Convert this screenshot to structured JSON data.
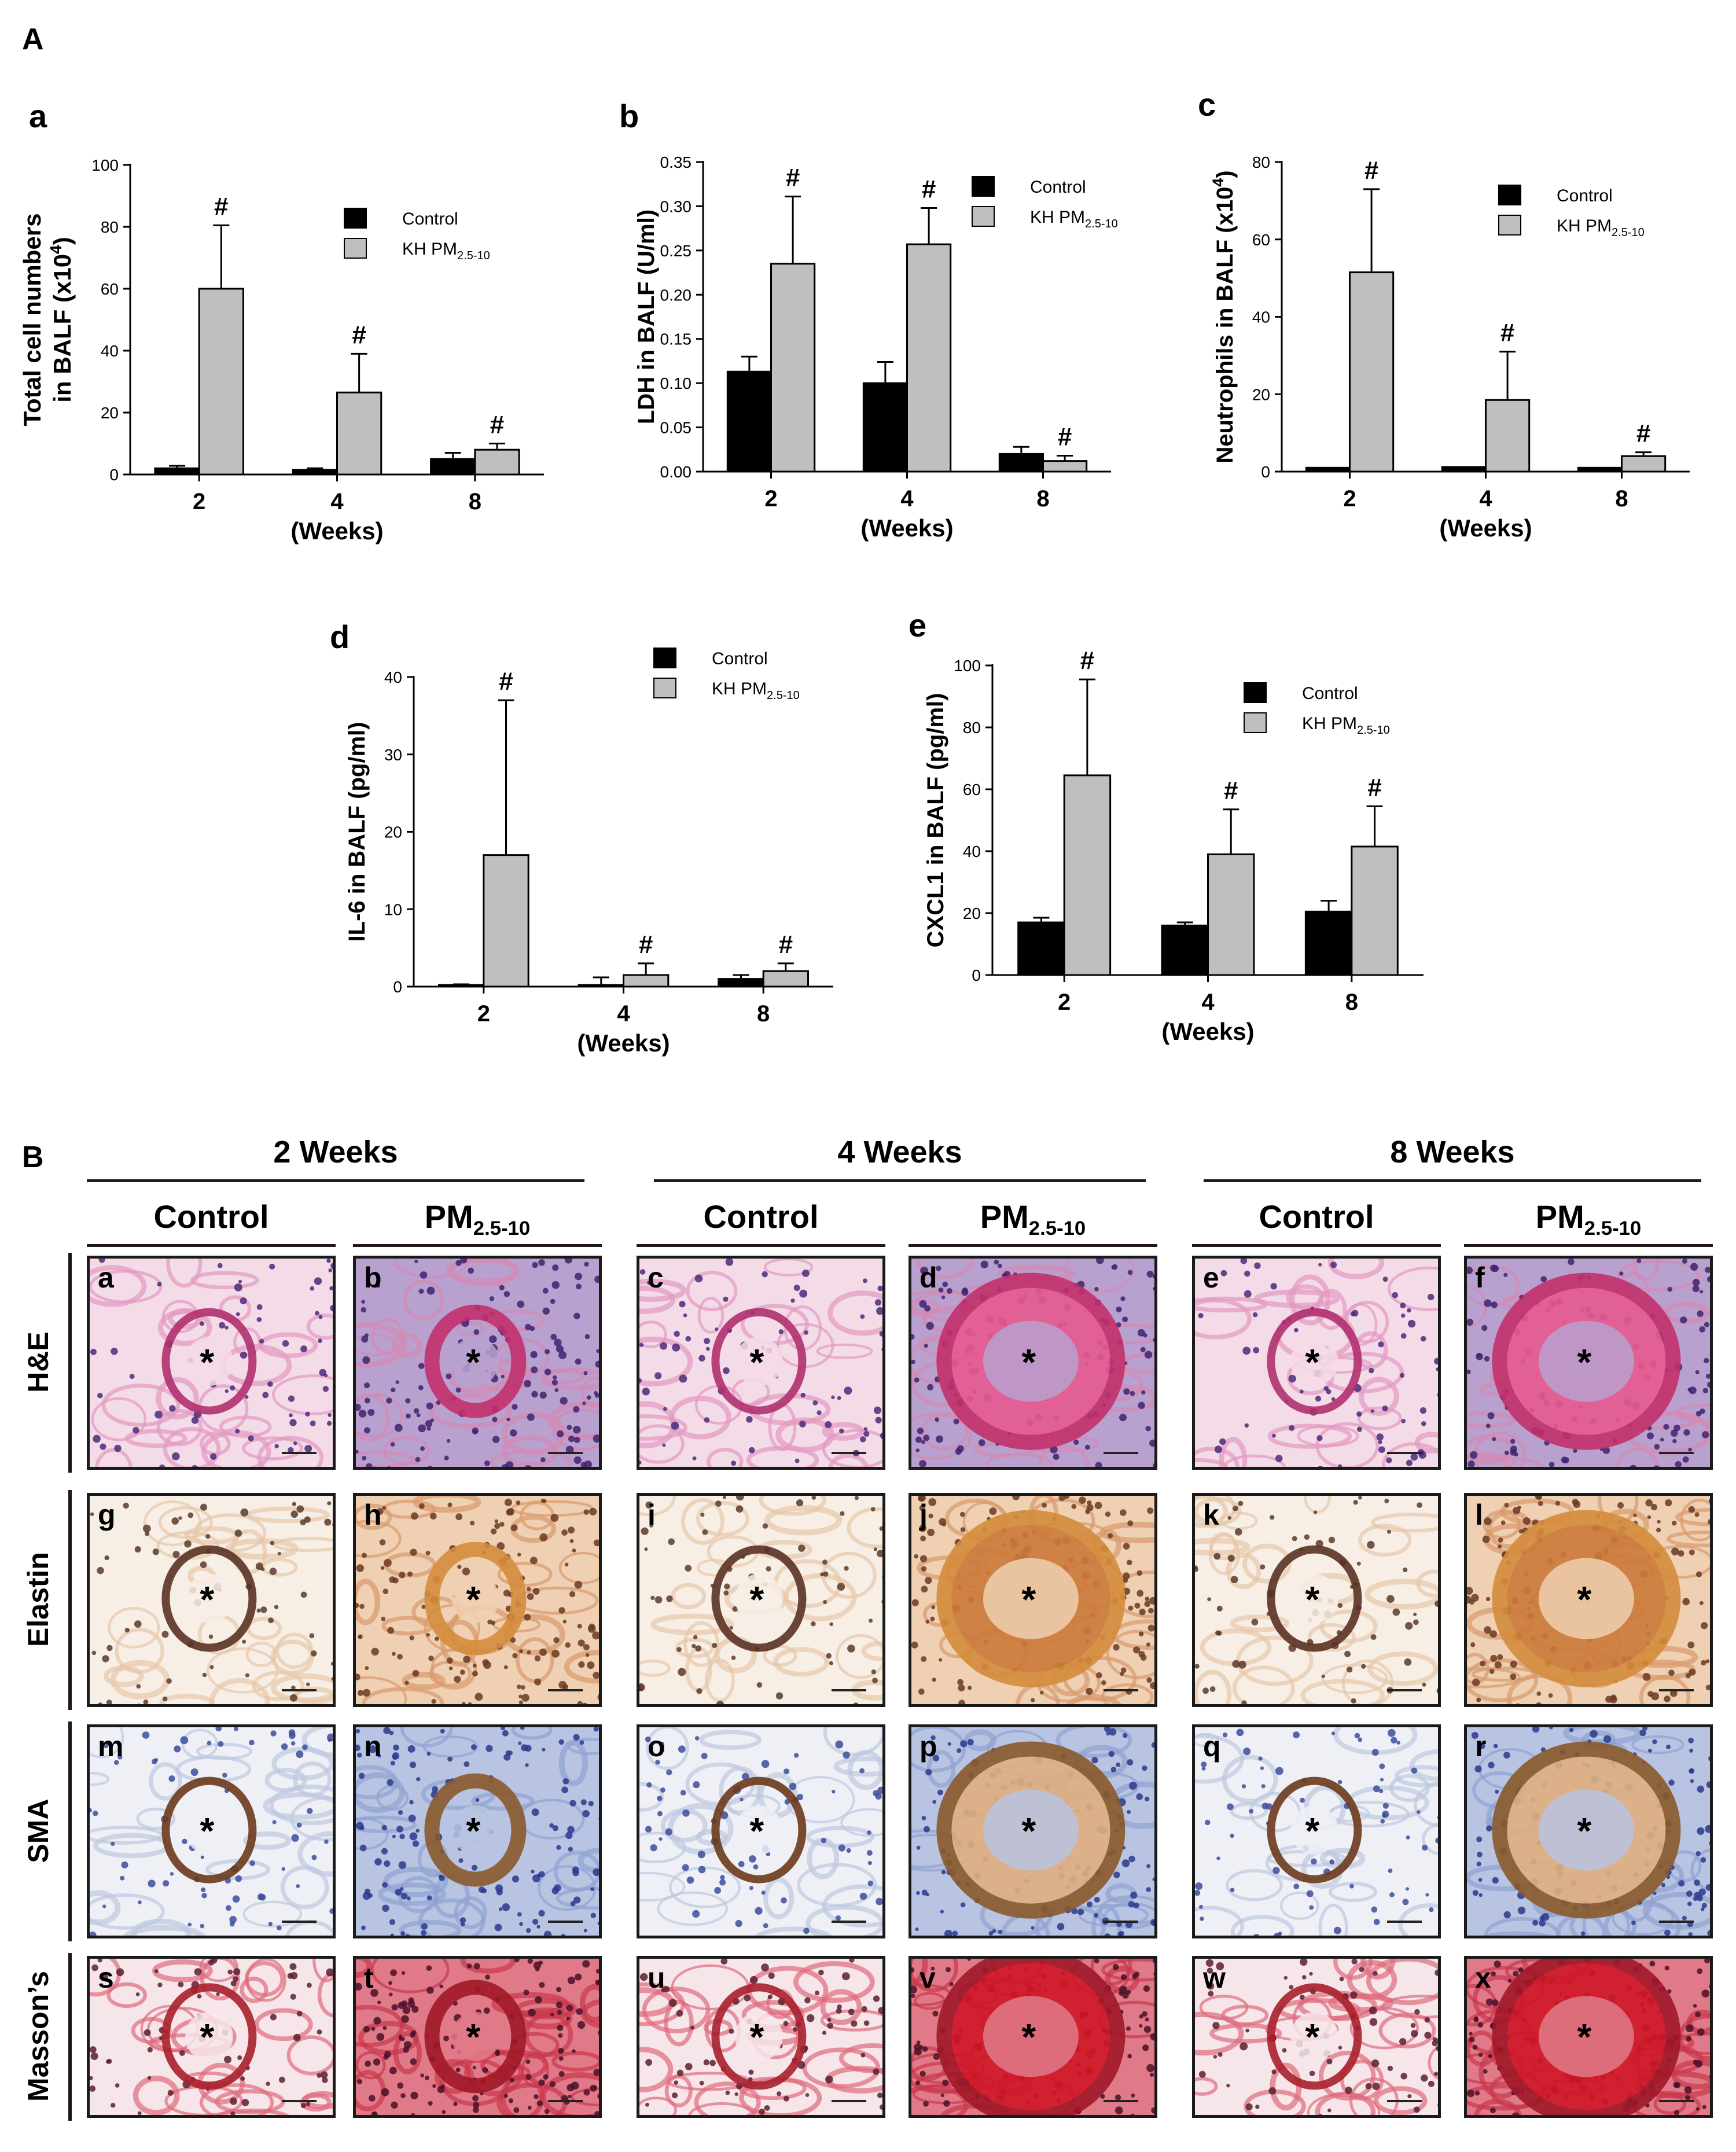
{
  "section_a_label": "A",
  "section_b_label": "B",
  "legend": {
    "control": "Control",
    "kh_prefix": "KH PM",
    "kh_sub": "2.5-10"
  },
  "colors": {
    "control": "#000000",
    "kh": "#bfbfbf"
  },
  "chart_data": [
    {
      "id": "a",
      "panel_label": "a",
      "type": "bar",
      "ylabel_lines": [
        "Total cell numbers",
        "in BALF (x10",
        "4",
        ")"
      ],
      "xlabel": "(Weeks)",
      "categories": [
        "2",
        "4",
        "8"
      ],
      "ylim": [
        0,
        100
      ],
      "yticks": [
        "0",
        "20",
        "40",
        "60",
        "80",
        "100"
      ],
      "series": [
        {
          "name": "Control",
          "values": [
            2,
            1.5,
            5
          ],
          "err": [
            0.8,
            0.5,
            2
          ]
        },
        {
          "name": "KH PM2.5-10",
          "values": [
            60,
            26.5,
            8
          ],
          "err": [
            20.5,
            12.5,
            2
          ]
        }
      ],
      "annotations": [
        "#",
        "#",
        "#"
      ]
    },
    {
      "id": "b",
      "panel_label": "b",
      "type": "bar",
      "ylabel": "LDH in BALF (U/ml)",
      "xlabel": "(Weeks)",
      "categories": [
        "2",
        "4",
        "8"
      ],
      "ylim": [
        0,
        0.35
      ],
      "yticks": [
        "0.00",
        "0.05",
        "0.10",
        "0.15",
        "0.20",
        "0.25",
        "0.30",
        "0.35"
      ],
      "series": [
        {
          "name": "Control",
          "values": [
            0.113,
            0.1,
            0.02
          ],
          "err": [
            0.017,
            0.024,
            0.008
          ]
        },
        {
          "name": "KH PM2.5-10",
          "values": [
            0.235,
            0.257,
            0.012
          ],
          "err": [
            0.076,
            0.041,
            0.006
          ]
        }
      ],
      "annotations": [
        "#",
        "#",
        "#"
      ]
    },
    {
      "id": "c",
      "panel_label": "c",
      "type": "bar",
      "ylabel_lines": [
        "Neutrophils in BALF (x10",
        "4",
        ")"
      ],
      "xlabel": "(Weeks)",
      "categories": [
        "2",
        "4",
        "8"
      ],
      "ylim": [
        0,
        80
      ],
      "yticks": [
        "0",
        "20",
        "40",
        "60",
        "80"
      ],
      "series": [
        {
          "name": "Control",
          "values": [
            1,
            1.2,
            1
          ],
          "err": [
            0,
            0,
            0
          ]
        },
        {
          "name": "KH PM2.5-10",
          "values": [
            51.5,
            18.5,
            4
          ],
          "err": [
            21.5,
            12.5,
            1
          ]
        }
      ],
      "annotations": [
        "#",
        "#",
        "#"
      ]
    },
    {
      "id": "d",
      "panel_label": "d",
      "type": "bar",
      "ylabel": "IL-6 in BALF (pg/ml)",
      "xlabel": "(Weeks)",
      "categories": [
        "2",
        "4",
        "8"
      ],
      "ylim": [
        0,
        40
      ],
      "yticks": [
        "0",
        "10",
        "20",
        "30",
        "40"
      ],
      "series": [
        {
          "name": "Control",
          "values": [
            0.2,
            0.2,
            1
          ],
          "err": [
            0.1,
            1,
            0.5
          ]
        },
        {
          "name": "KH PM2.5-10",
          "values": [
            17,
            1.5,
            2
          ],
          "err": [
            20,
            1.5,
            1
          ]
        }
      ],
      "annotations": [
        "#",
        "#",
        "#"
      ]
    },
    {
      "id": "e",
      "panel_label": "e",
      "type": "bar",
      "ylabel": "CXCL1 in BALF (pg/ml)",
      "xlabel": "(Weeks)",
      "categories": [
        "2",
        "4",
        "8"
      ],
      "ylim": [
        0,
        100
      ],
      "yticks": [
        "0",
        "20",
        "40",
        "60",
        "80",
        "100"
      ],
      "series": [
        {
          "name": "Control",
          "values": [
            17,
            16,
            20.5
          ],
          "err": [
            1.5,
            1,
            3.5
          ]
        },
        {
          "name": "KH PM2.5-10",
          "values": [
            64.5,
            39,
            41.5
          ],
          "err": [
            31,
            14.5,
            13
          ]
        }
      ],
      "annotations": [
        "#",
        "#",
        "#"
      ]
    }
  ],
  "histology": {
    "weeks": [
      "2 Weeks",
      "4 Weeks",
      "8 Weeks"
    ],
    "control_label": "Control",
    "pm_prefix": "PM",
    "pm_sub": "2.5-10",
    "stains": [
      "H&E",
      "Elastin",
      "SMA",
      "Masson’s"
    ],
    "panel_letters": [
      [
        "a",
        "b",
        "c",
        "d",
        "e",
        "f"
      ],
      [
        "g",
        "h",
        "i",
        "j",
        "k",
        "l"
      ],
      [
        "m",
        "n",
        "o",
        "p",
        "q",
        "r"
      ],
      [
        "s",
        "t",
        "u",
        "v",
        "w",
        "x"
      ]
    ],
    "star": "*"
  }
}
